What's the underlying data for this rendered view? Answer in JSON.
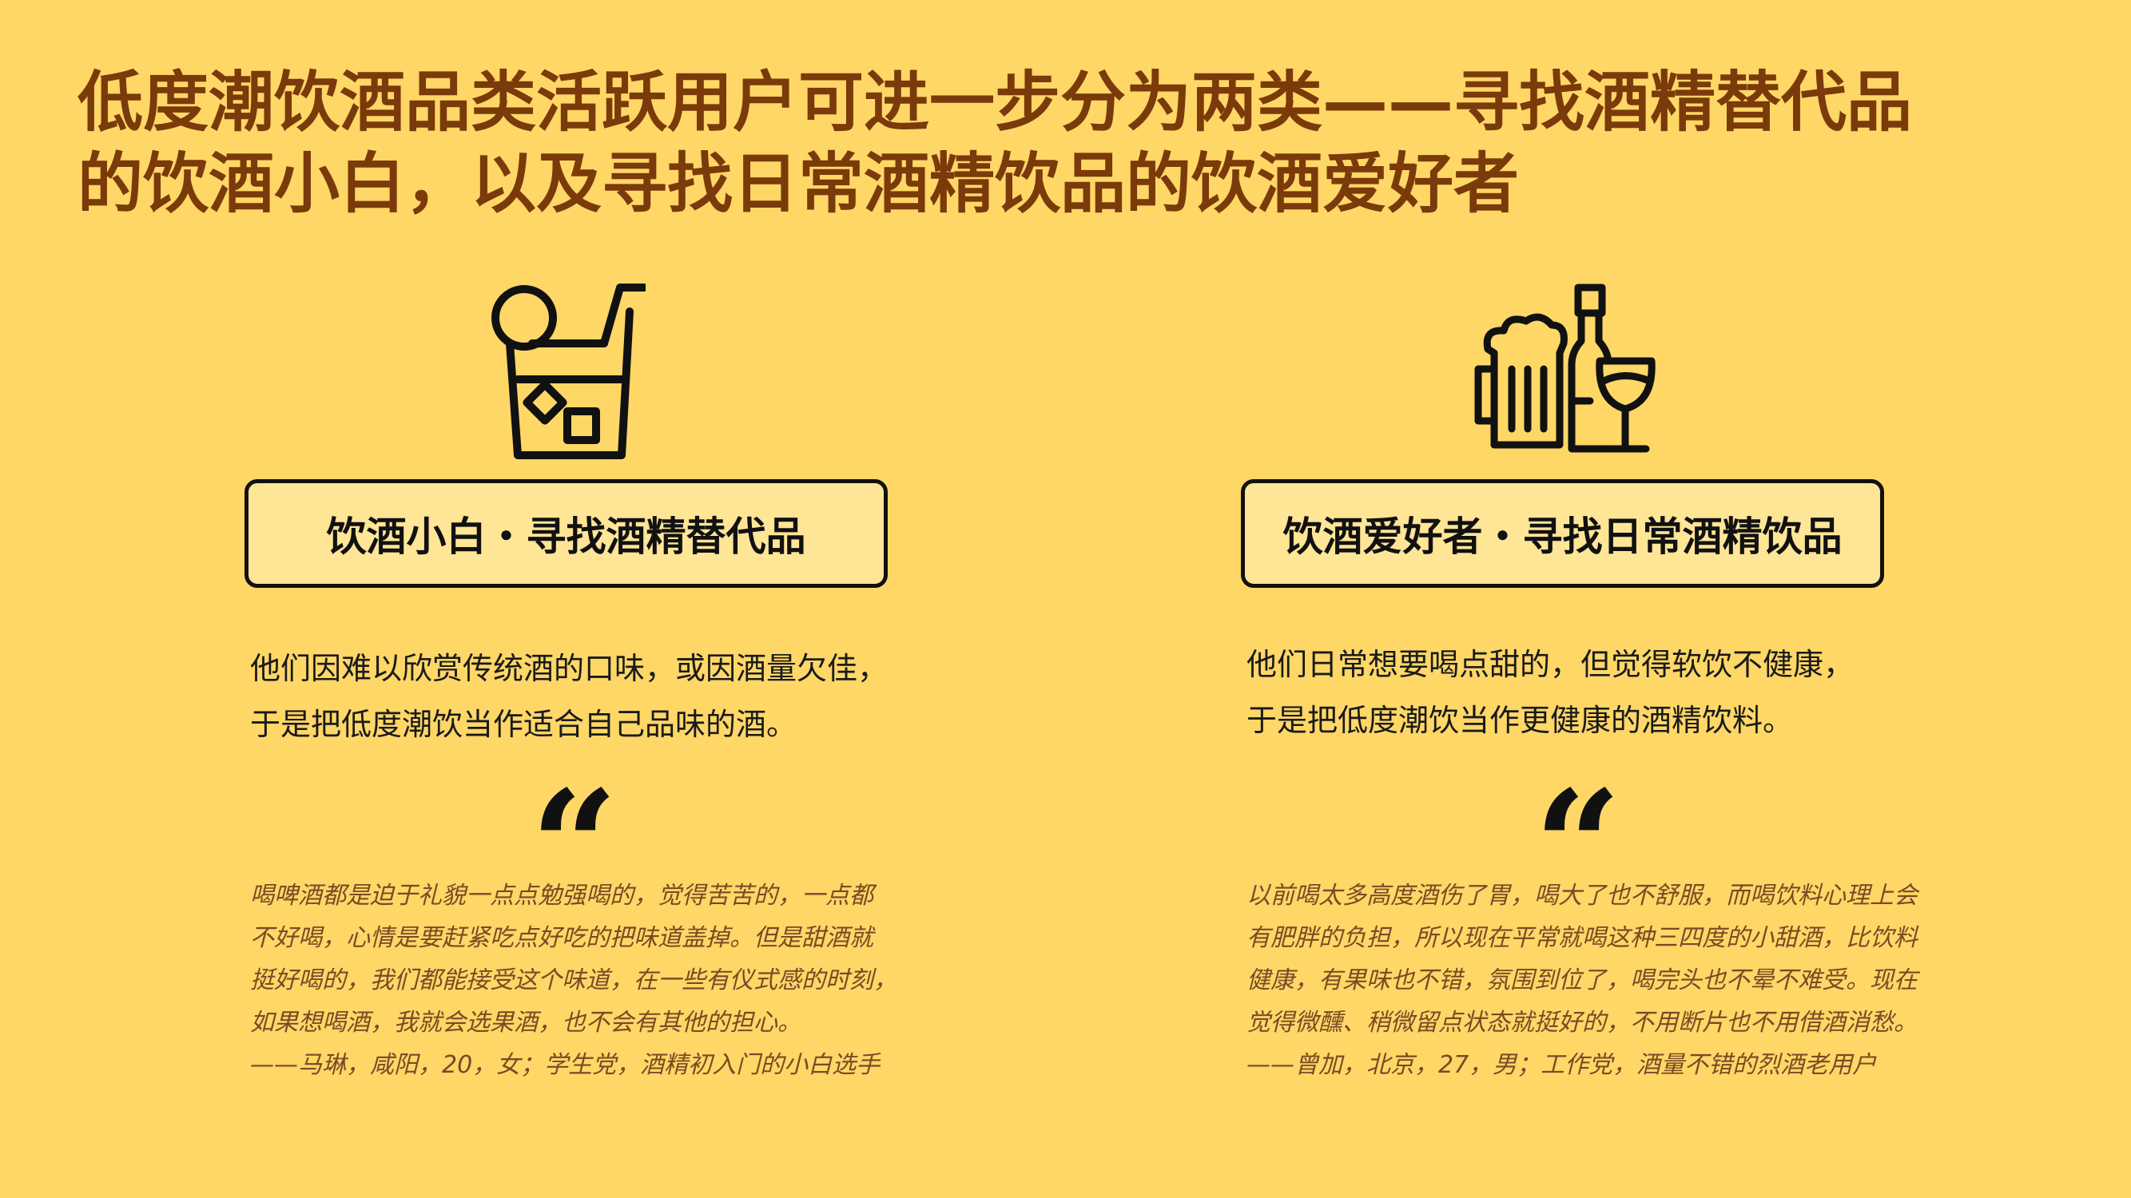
{
  "title": {
    "line1": "低度潮饮酒品类活跃用户可进一步分为两类——寻找酒精替代品",
    "line2": "的饮酒小白，以及寻找日常酒精饮品的饮酒爱好者"
  },
  "left": {
    "icon": "cocktail-glass-icon",
    "tag": "饮酒小白・寻找酒精替代品",
    "desc": [
      "他们因难以欣赏传统酒的口味，或因酒量欠佳，",
      "于是把低度潮饮当作适合自己品味的酒。"
    ],
    "quote_mark": "“",
    "quote": [
      "喝啤酒都是迫于礼貌一点点勉强喝的，觉得苦苦的，一点都",
      "不好喝，心情是要赶紧吃点好吃的把味道盖掉。但是甜酒就",
      "挺好喝的，我们都能接受这个味道，在一些有仪式感的时刻，",
      "如果想喝酒，我就会选果酒，也不会有其他的担心。",
      "——马琳，咸阳，20，女；学生党，酒精初入门的小白选手"
    ]
  },
  "right": {
    "icon": "beer-wine-bottle-icon",
    "tag": "饮酒爱好者・寻找日常酒精饮品",
    "desc": [
      "他们日常想要喝点甜的，但觉得软饮不健康，",
      "于是把低度潮饮当作更健康的酒精饮料。"
    ],
    "quote_mark": "“",
    "quote": [
      "以前喝太多高度酒伤了胃，喝大了也不舒服，而喝饮料心理上会",
      "有肥胖的负担，所以现在平常就喝这种三四度的小甜酒，比饮料",
      "健康，有果味也不错，氛围到位了，喝完头也不晕不难受。现在",
      "觉得微醺、稍微留点状态就挺好的，不用断片也不用借酒消愁。",
      "——曾加，北京，27，男；工作党，酒量不错的烈酒老用户"
    ]
  },
  "colors": {
    "background": "#FED767",
    "title": "#7A3A0A",
    "tag_fill": "#FFE596",
    "quote_text": "#7A4A24"
  }
}
